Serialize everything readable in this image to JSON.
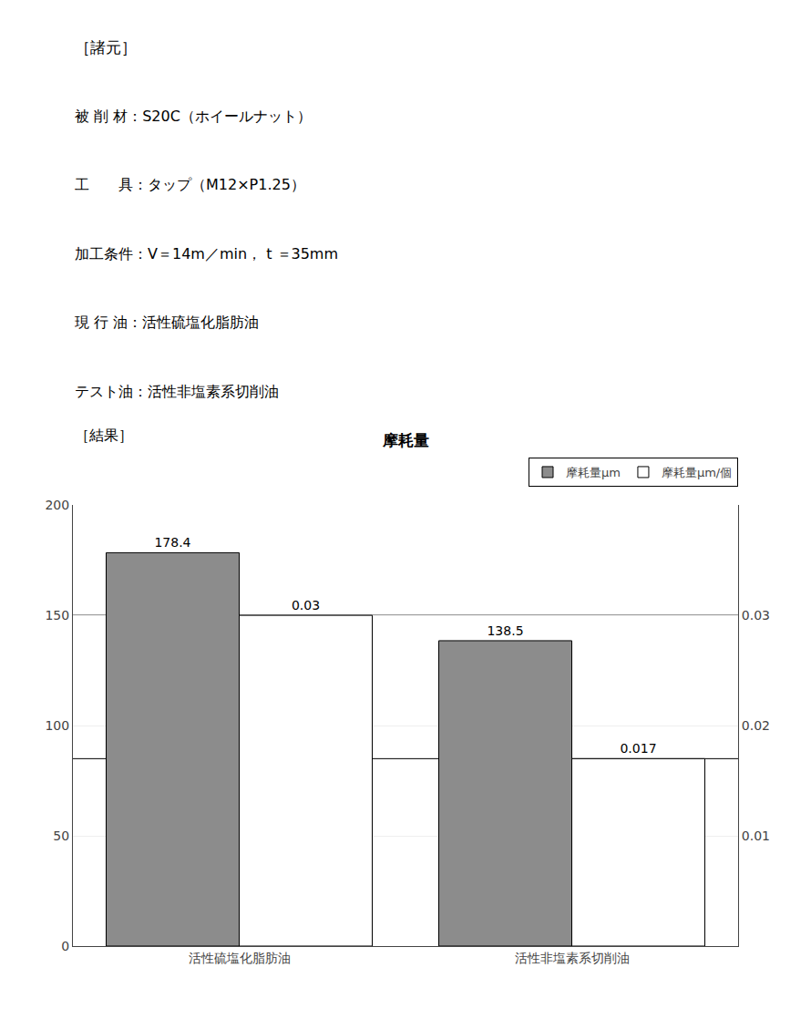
{
  "chart_data": {
    "type": "bar",
    "title": "摩耗量",
    "annotations": [
      "［諸元］",
      "被 削 材：S20C（ホイールナット）",
      "工　　具：タップ（M12×P1.25）",
      "加工条件：V＝14m／min， t ＝35mm",
      "現 行 油：活性硫塩化脂肪油",
      "テスト油：活性非塩素系切削油",
      "［結果］"
    ],
    "categories": [
      "活性硫塩化脂肪油",
      "活性非塩素系切削油"
    ],
    "series": [
      {
        "name": "摩耗量μm",
        "color": "#8c8c8c",
        "values": [
          178.4,
          138.5
        ]
      },
      {
        "name": "摩耗量μm/個",
        "color": "#ffffff",
        "values": [
          0.03,
          0.017
        ],
        "axis": "y2"
      }
    ],
    "ylim": [
      0,
      200
    ],
    "yticks": [
      0,
      50,
      100,
      150,
      200
    ],
    "y2lim": [
      0,
      0.04
    ],
    "y2ticks": [
      0.01,
      0.02,
      0.03
    ],
    "grid": true,
    "legend": "upper right",
    "data_labels": true
  }
}
